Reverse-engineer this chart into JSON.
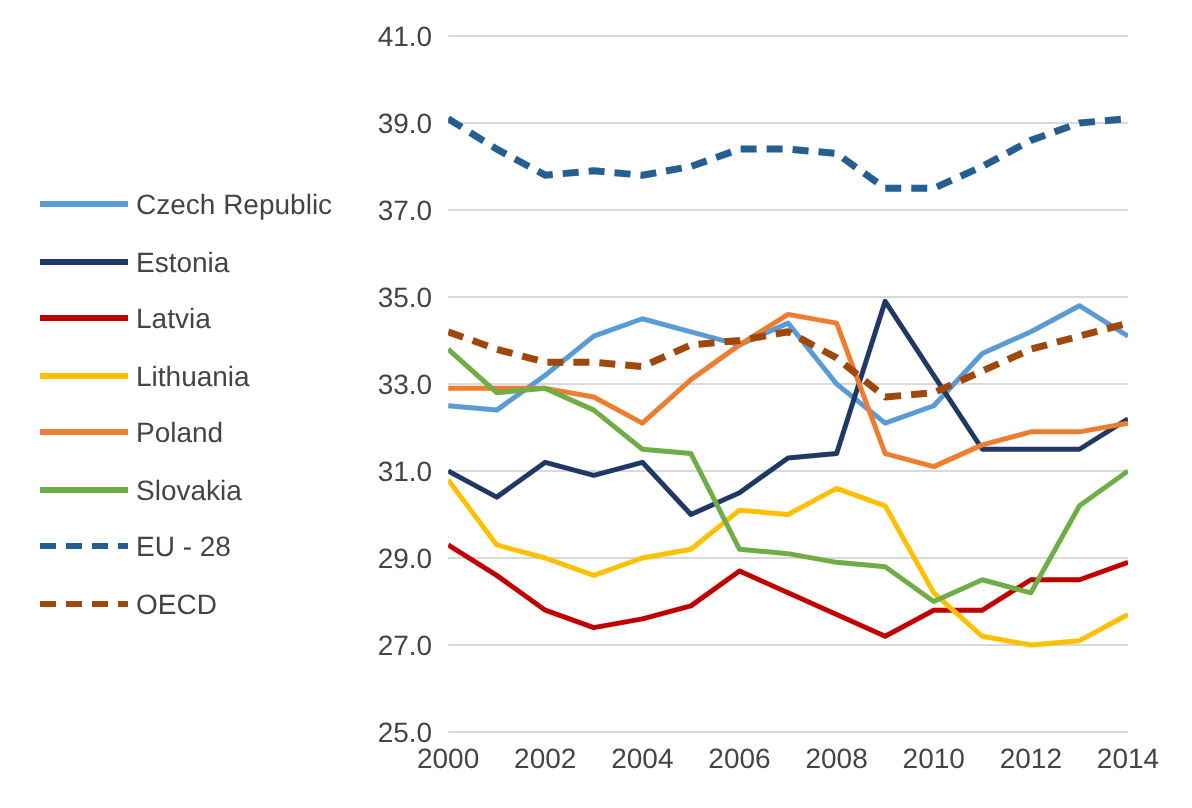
{
  "chart_data": {
    "type": "line",
    "x": [
      2000,
      2001,
      2002,
      2003,
      2004,
      2005,
      2006,
      2007,
      2008,
      2009,
      2010,
      2011,
      2012,
      2013,
      2014
    ],
    "xlim": [
      2000,
      2014
    ],
    "xticks": [
      2000,
      2002,
      2004,
      2006,
      2008,
      2010,
      2012,
      2014
    ],
    "ylim": [
      25,
      41
    ],
    "yticks": [
      {
        "value": 25,
        "label": "25.0"
      },
      {
        "value": 27,
        "label": "27.0"
      },
      {
        "value": 29,
        "label": "29.0"
      },
      {
        "value": 31,
        "label": "31.0"
      },
      {
        "value": 33,
        "label": "33.0"
      },
      {
        "value": 35,
        "label": "35.0"
      },
      {
        "value": 37,
        "label": "37.0"
      },
      {
        "value": 39,
        "label": "39.0"
      },
      {
        "value": 41,
        "label": "41.0"
      }
    ],
    "grid": "y",
    "legend": "left",
    "marker": "none",
    "series": [
      {
        "name": "Czech Republic",
        "color": "#5b9bd5",
        "line_style": "solid",
        "values": [
          32.5,
          32.4,
          33.2,
          34.1,
          34.5,
          34.2,
          33.9,
          34.4,
          33.0,
          32.1,
          32.5,
          33.7,
          34.2,
          34.8,
          34.1
        ]
      },
      {
        "name": "Estonia",
        "color": "#1f3864",
        "line_style": "solid",
        "values": [
          31.0,
          30.4,
          31.2,
          30.9,
          31.2,
          30.0,
          30.5,
          31.3,
          31.4,
          34.9,
          33.2,
          31.5,
          31.5,
          31.5,
          32.2
        ]
      },
      {
        "name": "Latvia",
        "color": "#c00000",
        "line_style": "solid",
        "values": [
          29.3,
          28.6,
          27.8,
          27.4,
          27.6,
          27.9,
          28.7,
          28.2,
          27.7,
          27.2,
          27.8,
          27.8,
          28.5,
          28.5,
          28.9
        ]
      },
      {
        "name": "Lithuania",
        "color": "#ffc000",
        "line_style": "solid",
        "values": [
          30.8,
          29.3,
          29.0,
          28.6,
          29.0,
          29.2,
          30.1,
          30.0,
          30.6,
          30.2,
          28.2,
          27.2,
          27.0,
          27.1,
          27.7
        ]
      },
      {
        "name": "Poland",
        "color": "#ed7d31",
        "line_style": "solid",
        "values": [
          32.9,
          32.9,
          32.9,
          32.7,
          32.1,
          33.1,
          33.9,
          34.6,
          34.4,
          31.4,
          31.1,
          31.6,
          31.9,
          31.9,
          32.1
        ]
      },
      {
        "name": "Slovakia",
        "color": "#70ad47",
        "line_style": "solid",
        "values": [
          33.8,
          32.8,
          32.9,
          32.4,
          31.5,
          31.4,
          29.2,
          29.1,
          28.9,
          28.8,
          28.0,
          28.5,
          28.2,
          30.2,
          31.0
        ]
      },
      {
        "name": "EU - 28",
        "color": "#255e91",
        "line_style": "dashed",
        "values": [
          39.1,
          38.4,
          37.8,
          37.9,
          37.8,
          38.0,
          38.4,
          38.4,
          38.3,
          37.5,
          37.5,
          38.0,
          38.6,
          39.0,
          39.1
        ]
      },
      {
        "name": "OECD",
        "color": "#9e480e",
        "line_style": "dashed",
        "values": [
          34.2,
          33.8,
          33.5,
          33.5,
          33.4,
          33.9,
          34.0,
          34.2,
          33.6,
          32.7,
          32.8,
          33.3,
          33.8,
          34.1,
          34.4
        ]
      }
    ]
  }
}
